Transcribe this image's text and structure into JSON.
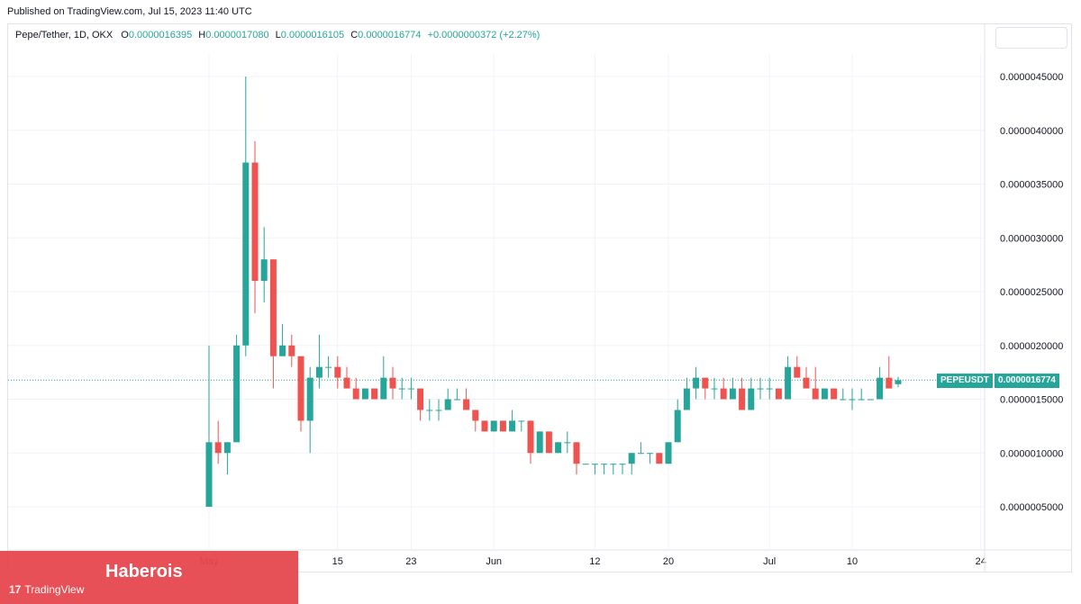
{
  "header": {
    "published": "Published on TradingView.com, Jul 15, 2023 11:40 UTC"
  },
  "legend": {
    "symbol": "Pepe/Tether, 1D, OKX",
    "open_k": "O",
    "open": "0.0000016395",
    "high_k": "H",
    "high": "0.0000017080",
    "low_k": "L",
    "low": "0.0000016105",
    "close_k": "C",
    "close": "0.0000016774",
    "change": "+0.0000000372 (+2.27%)"
  },
  "price_tag": {
    "symbol": "PEPEUSDT",
    "value": "0.0000016774"
  },
  "branding": {
    "watermark": "Haberois",
    "platform": "TradingView"
  },
  "colors": {
    "up": "#26a69a",
    "down": "#ef5350",
    "grid": "#f0f3fa",
    "price_line": "#26a69a"
  },
  "chart_data": {
    "type": "candlestick",
    "y_range": [
      1e-07,
      4.7e-06
    ],
    "y_ticks": [
      "0.0000045000",
      "0.0000040000",
      "0.0000035000",
      "0.0000030000",
      "0.0000025000",
      "0.0000020000",
      "0.0000015000",
      "0.0000010000",
      "0.0000005000"
    ],
    "y_tick_values": [
      4.5e-06,
      4e-06,
      3.5e-06,
      3e-06,
      2.5e-06,
      2e-06,
      1.5e-06,
      1e-06,
      5e-07
    ],
    "x_ticks": [
      {
        "label": "May",
        "day": 0
      },
      {
        "label": "15",
        "day": 14
      },
      {
        "label": "23",
        "day": 22
      },
      {
        "label": "Jun",
        "day": 31
      },
      {
        "label": "12",
        "day": 42
      },
      {
        "label": "20",
        "day": 50
      },
      {
        "label": "Jul",
        "day": 61
      },
      {
        "label": "10",
        "day": 70
      },
      {
        "label": "24",
        "day": 84
      }
    ],
    "last_price": 1.6774e-06,
    "candles": [
      {
        "o": 5e-07,
        "h": 2e-06,
        "l": 5e-07,
        "c": 1.1e-06
      },
      {
        "o": 1.1e-06,
        "h": 1.3e-06,
        "l": 9e-07,
        "c": 1e-06
      },
      {
        "o": 1e-06,
        "h": 1.1e-06,
        "l": 8e-07,
        "c": 1.1e-06
      },
      {
        "o": 1.1e-06,
        "h": 2.1e-06,
        "l": 1.1e-06,
        "c": 2e-06
      },
      {
        "o": 2e-06,
        "h": 4.5e-06,
        "l": 1.9e-06,
        "c": 3.7e-06
      },
      {
        "o": 3.7e-06,
        "h": 3.9e-06,
        "l": 2.3e-06,
        "c": 2.6e-06
      },
      {
        "o": 2.6e-06,
        "h": 3.1e-06,
        "l": 2.4e-06,
        "c": 2.8e-06
      },
      {
        "o": 2.8e-06,
        "h": 2.8e-06,
        "l": 1.6e-06,
        "c": 1.9e-06
      },
      {
        "o": 1.9e-06,
        "h": 2.2e-06,
        "l": 1.9e-06,
        "c": 2e-06
      },
      {
        "o": 2e-06,
        "h": 2.1e-06,
        "l": 1.8e-06,
        "c": 1.9e-06
      },
      {
        "o": 1.9e-06,
        "h": 1.9e-06,
        "l": 1.2e-06,
        "c": 1.3e-06
      },
      {
        "o": 1.3e-06,
        "h": 1.8e-06,
        "l": 1e-06,
        "c": 1.7e-06
      },
      {
        "o": 1.7e-06,
        "h": 2.1e-06,
        "l": 1.6e-06,
        "c": 1.8e-06
      },
      {
        "o": 1.8e-06,
        "h": 1.9e-06,
        "l": 1.7e-06,
        "c": 1.8e-06
      },
      {
        "o": 1.8e-06,
        "h": 1.9e-06,
        "l": 1.6e-06,
        "c": 1.7e-06
      },
      {
        "o": 1.7e-06,
        "h": 1.8e-06,
        "l": 1.6e-06,
        "c": 1.6e-06
      },
      {
        "o": 1.6e-06,
        "h": 1.7e-06,
        "l": 1.5e-06,
        "c": 1.5e-06
      },
      {
        "o": 1.5e-06,
        "h": 1.6e-06,
        "l": 1.5e-06,
        "c": 1.6e-06
      },
      {
        "o": 1.6e-06,
        "h": 1.6e-06,
        "l": 1.5e-06,
        "c": 1.5e-06
      },
      {
        "o": 1.5e-06,
        "h": 1.9e-06,
        "l": 1.5e-06,
        "c": 1.7e-06
      },
      {
        "o": 1.7e-06,
        "h": 1.8e-06,
        "l": 1.5e-06,
        "c": 1.6e-06
      },
      {
        "o": 1.6e-06,
        "h": 1.7e-06,
        "l": 1.5e-06,
        "c": 1.6e-06
      },
      {
        "o": 1.6e-06,
        "h": 1.7e-06,
        "l": 1.5e-06,
        "c": 1.6e-06
      },
      {
        "o": 1.6e-06,
        "h": 1.6e-06,
        "l": 1.3e-06,
        "c": 1.4e-06
      },
      {
        "o": 1.4e-06,
        "h": 1.5e-06,
        "l": 1.3e-06,
        "c": 1.4e-06
      },
      {
        "o": 1.4e-06,
        "h": 1.5e-06,
        "l": 1.3e-06,
        "c": 1.4e-06
      },
      {
        "o": 1.4e-06,
        "h": 1.6e-06,
        "l": 1.4e-06,
        "c": 1.5e-06
      },
      {
        "o": 1.5e-06,
        "h": 1.6e-06,
        "l": 1.5e-06,
        "c": 1.5e-06
      },
      {
        "o": 1.5e-06,
        "h": 1.6e-06,
        "l": 1.4e-06,
        "c": 1.4e-06
      },
      {
        "o": 1.4e-06,
        "h": 1.4e-06,
        "l": 1.2e-06,
        "c": 1.3e-06
      },
      {
        "o": 1.3e-06,
        "h": 1.3e-06,
        "l": 1.2e-06,
        "c": 1.2e-06
      },
      {
        "o": 1.2e-06,
        "h": 1.3e-06,
        "l": 1.2e-06,
        "c": 1.3e-06
      },
      {
        "o": 1.3e-06,
        "h": 1.3e-06,
        "l": 1.2e-06,
        "c": 1.2e-06
      },
      {
        "o": 1.2e-06,
        "h": 1.4e-06,
        "l": 1.2e-06,
        "c": 1.3e-06
      },
      {
        "o": 1.3e-06,
        "h": 1.3e-06,
        "l": 1.2e-06,
        "c": 1.3e-06
      },
      {
        "o": 1.3e-06,
        "h": 1.3e-06,
        "l": 9e-07,
        "c": 1e-06
      },
      {
        "o": 1e-06,
        "h": 1.2e-06,
        "l": 1e-06,
        "c": 1.2e-06
      },
      {
        "o": 1.2e-06,
        "h": 1.2e-06,
        "l": 1e-06,
        "c": 1e-06
      },
      {
        "o": 1e-06,
        "h": 1.1e-06,
        "l": 1e-06,
        "c": 1.1e-06
      },
      {
        "o": 1.1e-06,
        "h": 1.2e-06,
        "l": 1e-06,
        "c": 1.1e-06
      },
      {
        "o": 1.1e-06,
        "h": 1.1e-06,
        "l": 8e-07,
        "c": 9e-07
      },
      {
        "o": 9e-07,
        "h": 9e-07,
        "l": 9e-07,
        "c": 9e-07
      },
      {
        "o": 9e-07,
        "h": 9e-07,
        "l": 8e-07,
        "c": 9e-07
      },
      {
        "o": 9e-07,
        "h": 9e-07,
        "l": 8e-07,
        "c": 9e-07
      },
      {
        "o": 9e-07,
        "h": 9e-07,
        "l": 8e-07,
        "c": 9e-07
      },
      {
        "o": 9e-07,
        "h": 9e-07,
        "l": 8e-07,
        "c": 9e-07
      },
      {
        "o": 9e-07,
        "h": 1e-06,
        "l": 8e-07,
        "c": 1e-06
      },
      {
        "o": 1e-06,
        "h": 1.1e-06,
        "l": 1e-06,
        "c": 1e-06
      },
      {
        "o": 1e-06,
        "h": 1e-06,
        "l": 9e-07,
        "c": 1e-06
      },
      {
        "o": 1e-06,
        "h": 1e-06,
        "l": 9e-07,
        "c": 9e-07
      },
      {
        "o": 9e-07,
        "h": 1.1e-06,
        "l": 9e-07,
        "c": 1.1e-06
      },
      {
        "o": 1.1e-06,
        "h": 1.5e-06,
        "l": 1.1e-06,
        "c": 1.4e-06
      },
      {
        "o": 1.4e-06,
        "h": 1.7e-06,
        "l": 1.4e-06,
        "c": 1.6e-06
      },
      {
        "o": 1.6e-06,
        "h": 1.8e-06,
        "l": 1.5e-06,
        "c": 1.7e-06
      },
      {
        "o": 1.7e-06,
        "h": 1.7e-06,
        "l": 1.5e-06,
        "c": 1.6e-06
      },
      {
        "o": 1.6e-06,
        "h": 1.7e-06,
        "l": 1.5e-06,
        "c": 1.6e-06
      },
      {
        "o": 1.6e-06,
        "h": 1.7e-06,
        "l": 1.5e-06,
        "c": 1.5e-06
      },
      {
        "o": 1.5e-06,
        "h": 1.7e-06,
        "l": 1.5e-06,
        "c": 1.6e-06
      },
      {
        "o": 1.6e-06,
        "h": 1.7e-06,
        "l": 1.4e-06,
        "c": 1.4e-06
      },
      {
        "o": 1.4e-06,
        "h": 1.7e-06,
        "l": 1.4e-06,
        "c": 1.6e-06
      },
      {
        "o": 1.6e-06,
        "h": 1.7e-06,
        "l": 1.5e-06,
        "c": 1.6e-06
      },
      {
        "o": 1.6e-06,
        "h": 1.7e-06,
        "l": 1.5e-06,
        "c": 1.6e-06
      },
      {
        "o": 1.6e-06,
        "h": 1.6e-06,
        "l": 1.5e-06,
        "c": 1.5e-06
      },
      {
        "o": 1.5e-06,
        "h": 1.9e-06,
        "l": 1.5e-06,
        "c": 1.8e-06
      },
      {
        "o": 1.8e-06,
        "h": 1.9e-06,
        "l": 1.7e-06,
        "c": 1.7e-06
      },
      {
        "o": 1.7e-06,
        "h": 1.8e-06,
        "l": 1.6e-06,
        "c": 1.6e-06
      },
      {
        "o": 1.6e-06,
        "h": 1.8e-06,
        "l": 1.5e-06,
        "c": 1.5e-06
      },
      {
        "o": 1.5e-06,
        "h": 1.6e-06,
        "l": 1.5e-06,
        "c": 1.6e-06
      },
      {
        "o": 1.6e-06,
        "h": 1.6e-06,
        "l": 1.5e-06,
        "c": 1.5e-06
      },
      {
        "o": 1.5e-06,
        "h": 1.6e-06,
        "l": 1.5e-06,
        "c": 1.5e-06
      },
      {
        "o": 1.5e-06,
        "h": 1.6e-06,
        "l": 1.4e-06,
        "c": 1.5e-06
      },
      {
        "o": 1.5e-06,
        "h": 1.6e-06,
        "l": 1.5e-06,
        "c": 1.5e-06
      },
      {
        "o": 1.5e-06,
        "h": 1.5e-06,
        "l": 1.5e-06,
        "c": 1.5e-06
      },
      {
        "o": 1.5e-06,
        "h": 1.8e-06,
        "l": 1.5e-06,
        "c": 1.7e-06
      },
      {
        "o": 1.7e-06,
        "h": 1.9e-06,
        "l": 1.6e-06,
        "c": 1.6e-06
      },
      {
        "o": 1.6395e-06,
        "h": 1.708e-06,
        "l": 1.6105e-06,
        "c": 1.6774e-06
      }
    ]
  }
}
